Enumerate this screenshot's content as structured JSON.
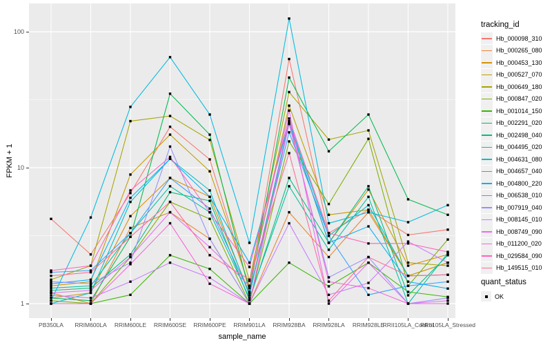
{
  "figure": {
    "background": "#FFFFFF",
    "panel_background": "#EBEBEB",
    "grid_color": "#FFFFFF",
    "axis_text_color": "#4D4D4D",
    "tick_color": "#333333",
    "point_color": "#000000",
    "legend_key_background": "#F0F0F0"
  },
  "axes": {
    "x_title": "sample_name",
    "y_title": "FPKM + 1",
    "y_tick_labels": [
      "100",
      "10",
      "1"
    ],
    "y_tick_values": [
      100,
      10,
      1
    ]
  },
  "legend": {
    "tracking_title": "tracking_id",
    "quant_title": "quant_status",
    "quant_label": "OK"
  },
  "chart_data": {
    "type": "line",
    "log_y": true,
    "title": "",
    "xlabel": "sample_name",
    "ylabel": "FPKM + 1",
    "ylim": [
      0.85,
      160
    ],
    "y_scale": "log10",
    "grid": true,
    "legend_position": "right",
    "categories": [
      "PB350LA",
      "RRIM600LA",
      "RRIM600LE",
      "RRIM600SE",
      "RRIM600PE",
      "RRIM901LA",
      "RRIM928BA",
      "RRIM928LA",
      "RRIM928LE",
      "RRII105LA_Control",
      "RRII105LA_Stressed"
    ],
    "series": [
      {
        "name": "Hb_000098_310",
        "color": "#F8766D",
        "values": [
          4.2,
          2.3,
          6.5,
          20,
          11.5,
          1.3,
          63,
          3.3,
          4.9,
          3.2,
          3.5
        ]
      },
      {
        "name": "Hb_000265_080",
        "color": "#EA8331",
        "values": [
          1.2,
          1.0,
          3.6,
          4.7,
          3.0,
          1.0,
          4.7,
          2.2,
          4.7,
          1.6,
          2.0
        ]
      },
      {
        "name": "Hb_000453_130",
        "color": "#D89000",
        "values": [
          1.1,
          1.2,
          4.4,
          8.4,
          6.1,
          1.2,
          21,
          2.8,
          6.9,
          1.9,
          2.3
        ]
      },
      {
        "name": "Hb_000527_070",
        "color": "#C09B00",
        "values": [
          1.35,
          1.45,
          8.9,
          17.5,
          9.4,
          1.35,
          28.6,
          4.5,
          4.9,
          1.6,
          2.0
        ]
      },
      {
        "name": "Hb_000649_180",
        "color": "#A3A500",
        "values": [
          1.5,
          1.9,
          22,
          24,
          16,
          1.47,
          36,
          16.1,
          18.8,
          2.0,
          1.9
        ]
      },
      {
        "name": "Hb_000847_020",
        "color": "#7CAE00",
        "values": [
          1.05,
          1.0,
          2.2,
          5.6,
          4.2,
          1.0,
          15.6,
          5.4,
          16.3,
          1.35,
          2.96
        ]
      },
      {
        "name": "Hb_001014_150",
        "color": "#39B600",
        "values": [
          1.0,
          1.0,
          1.16,
          2.27,
          1.8,
          1.0,
          2.0,
          1.34,
          2.0,
          1.22,
          1.12
        ]
      },
      {
        "name": "Hb_002291_020",
        "color": "#00BB4E",
        "values": [
          1.1,
          1.05,
          3.1,
          35,
          17.5,
          1.22,
          46,
          13.2,
          24.6,
          5.85,
          4.5
        ]
      },
      {
        "name": "Hb_002498_040",
        "color": "#00BF7D",
        "values": [
          1.25,
          1.3,
          2.3,
          6.6,
          5.7,
          1.06,
          8.4,
          2.8,
          7.3,
          1.15,
          2.27
        ]
      },
      {
        "name": "Hb_004495_020",
        "color": "#00C1A3",
        "values": [
          1.3,
          1.35,
          3.3,
          7.3,
          4.7,
          1.1,
          7.3,
          2.49,
          6.1,
          1.0,
          2.35
        ]
      },
      {
        "name": "Hb_004631_080",
        "color": "#00BFC4",
        "values": [
          1.0,
          1.2,
          5.6,
          11.6,
          6.8,
          1.15,
          22,
          3.15,
          5.3,
          1.6,
          1.63
        ]
      },
      {
        "name": "Hb_004657_040",
        "color": "#00BAE0",
        "values": [
          1.05,
          4.3,
          28,
          65,
          24.6,
          2.8,
          125,
          3.9,
          4.7,
          3.97,
          5.3
        ]
      },
      {
        "name": "Hb_004800_220",
        "color": "#00B0F6",
        "values": [
          1.4,
          1.5,
          6.0,
          11.6,
          6.1,
          2.0,
          21.5,
          2.8,
          3.7,
          1.45,
          1.29
        ]
      },
      {
        "name": "Hb_006538_010",
        "color": "#35A2FF",
        "values": [
          1.7,
          1.75,
          3.3,
          8.4,
          5.0,
          1.2,
          18.2,
          3.15,
          1.16,
          1.35,
          1.45
        ]
      },
      {
        "name": "Hb_007919_040",
        "color": "#9590FF",
        "values": [
          1.45,
          1.4,
          2.0,
          14.3,
          3.0,
          1.0,
          21,
          1.56,
          2.2,
          1.0,
          1.1
        ]
      },
      {
        "name": "Hb_008145_010",
        "color": "#C77CFF",
        "values": [
          1.15,
          1.1,
          1.45,
          2.0,
          1.55,
          1.0,
          3.9,
          1.16,
          1.42,
          2.86,
          2.0
        ]
      },
      {
        "name": "Hb_008749_090",
        "color": "#E76BF3",
        "values": [
          1.2,
          1.25,
          2.2,
          4.7,
          2.6,
          1.35,
          26.3,
          1.0,
          2.0,
          1.0,
          1.05
        ]
      },
      {
        "name": "Hb_011200_020",
        "color": "#FA62DB",
        "values": [
          1.0,
          1.0,
          1.95,
          3.9,
          1.4,
          1.0,
          22,
          1.45,
          1.3,
          1.0,
          1.0
        ]
      },
      {
        "name": "Hb_029584_090",
        "color": "#FF62BC",
        "values": [
          1.75,
          1.9,
          6.8,
          12,
          4.7,
          1.86,
          23,
          3.3,
          2.77,
          2.77,
          2.4
        ]
      },
      {
        "name": "Hb_149515_010",
        "color": "#FF6A98",
        "values": [
          1.6,
          1.7,
          3.1,
          5.6,
          2.27,
          1.5,
          12.8,
          1.05,
          2.2,
          1.6,
          1.63
        ]
      }
    ],
    "quant_status_series": [
      {
        "label": "OK",
        "marker": "black-square"
      }
    ]
  }
}
